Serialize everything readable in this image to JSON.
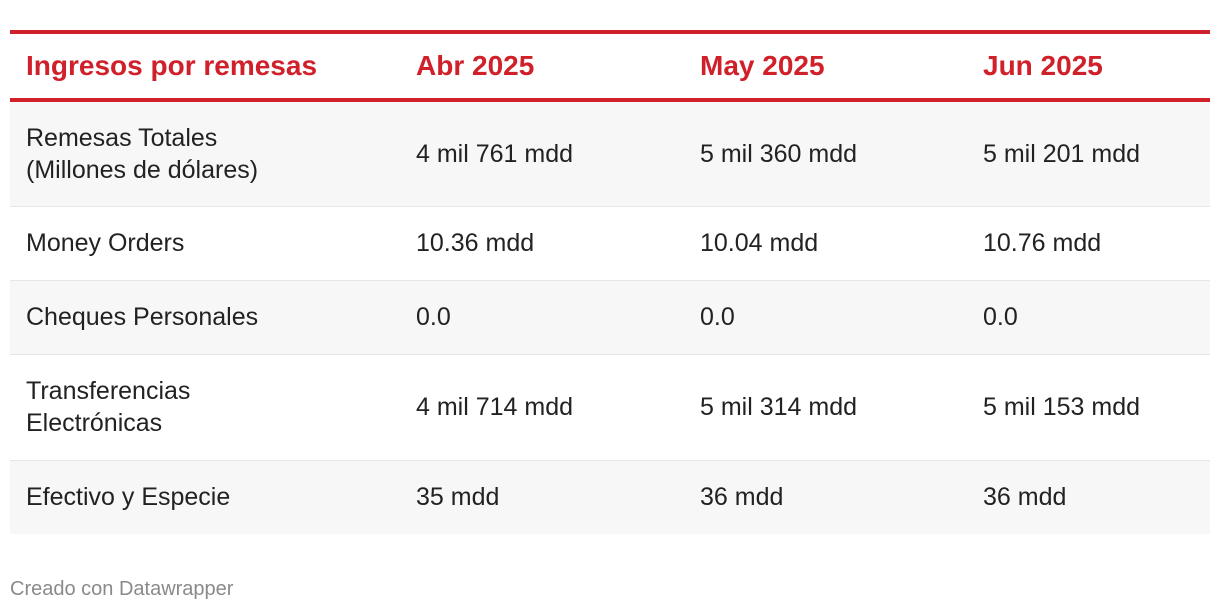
{
  "chart_data": {
    "type": "table",
    "columns": [
      "Ingresos por remesas",
      "Abr 2025",
      "May 2025",
      "Jun 2025"
    ],
    "rows": [
      [
        "Remesas Totales\n(Millones de dólares)",
        "4 mil 761 mdd",
        "5 mil 360 mdd",
        "5 mil 201 mdd"
      ],
      [
        "Money Orders",
        "10.36 mdd",
        "10.04 mdd",
        "10.76 mdd"
      ],
      [
        "Cheques Personales",
        "0.0",
        "0.0",
        "0.0"
      ],
      [
        "Transferencias\nElectrónicas",
        "4 mil 714 mdd",
        "5 mil 314 mdd",
        "5 mil 153 mdd"
      ],
      [
        "Efectivo y Especie",
        "35 mdd",
        "36 mdd",
        "36 mdd"
      ]
    ]
  },
  "footer": {
    "credit": "Creado con Datawrapper"
  },
  "colors": {
    "accent": "#d0202a",
    "stripe": "#f7f7f7",
    "text": "#222222",
    "muted": "#8a8a8a"
  }
}
